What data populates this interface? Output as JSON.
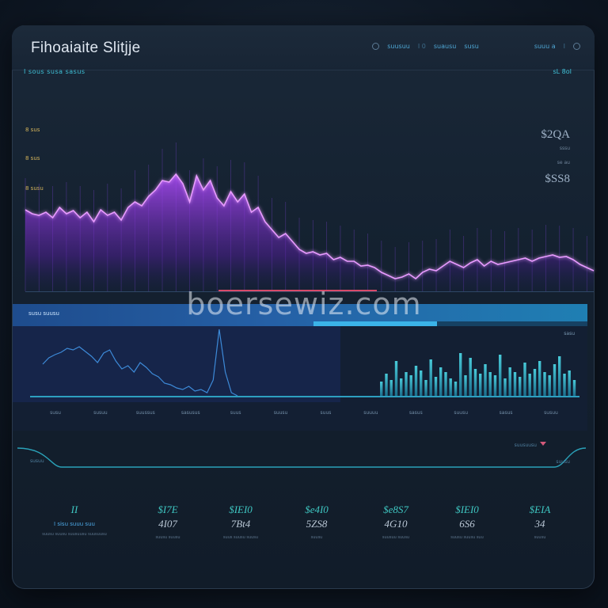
{
  "window": {
    "title": "Fihoaiaite Slitjje"
  },
  "top_nav": {
    "items": [
      "suusuu",
      "I 0",
      "suausu",
      "susu",
      "suuu a",
      "I"
    ],
    "colors": {
      "accent": "#4fa8d6"
    }
  },
  "main_chart": {
    "header_left": "I sous susa sasus",
    "header_right": "sL 8oI",
    "y_ticks": [
      "8 sus",
      "8 sus",
      "8 susu"
    ],
    "value_1": "$2QA",
    "caption_1": "sssu",
    "caption_2": "se au",
    "value_2": "$SS8",
    "progress": 0.3,
    "colors": {
      "line": "#d07bff",
      "fill": "#8a2be2",
      "grid": "#7a4fc4"
    }
  },
  "chart_data": [
    {
      "type": "area",
      "series": [
        {
          "values": [
            265,
            270,
            272,
            268,
            275,
            262,
            270,
            266,
            275,
            268,
            280,
            265,
            272,
            268,
            278,
            262,
            255,
            260,
            248,
            240,
            228,
            230,
            220,
            232,
            255,
            222,
            240,
            228,
            250,
            260,
            242,
            255,
            245,
            268,
            262,
            280,
            290,
            300,
            295,
            305,
            315,
            320,
            318,
            322,
            320,
            328,
            325,
            330,
            330,
            336,
            335,
            338,
            344,
            348,
            352,
            350,
            346,
            352,
            344,
            340,
            342,
            336,
            330,
            334,
            338,
            332,
            328,
            336,
            330,
            334,
            332,
            330,
            328,
            326,
            330,
            326,
            324,
            322,
            325,
            324,
            328,
            334,
            338,
            342
          ]
        }
      ]
    },
    {
      "type": "line",
      "series": [
        {
          "values": [
            460,
            452,
            448,
            445,
            440,
            442,
            438,
            444,
            450,
            458,
            446,
            442,
            456,
            466,
            462,
            470,
            458,
            464,
            472,
            476,
            484,
            486,
            490,
            492,
            488,
            494,
            492,
            496,
            480,
            416,
            470,
            496,
            500
          ]
        }
      ]
    },
    {
      "type": "bar",
      "values": [
        18,
        28,
        20,
        44,
        22,
        30,
        26,
        38,
        32,
        20,
        46,
        24,
        36,
        30,
        22,
        18,
        54,
        26,
        48,
        34,
        28,
        40,
        30,
        26,
        52,
        22,
        36,
        30,
        24,
        42,
        28,
        34,
        44,
        30,
        26,
        40,
        50,
        28,
        32,
        20
      ]
    }
  ],
  "bar_panel": {
    "label": "susu suusu",
    "sub_caption": "sasu",
    "progress": 0.45,
    "x_labels": [
      "susu",
      "susuu",
      "suussus",
      "sasusus",
      "suus",
      "suusu",
      "suus",
      "suuuu",
      "sasus",
      "suusu",
      "sasus",
      "susuu"
    ]
  },
  "range": {
    "left_label": "susuu",
    "right_label": "suusu",
    "select_label": "suusuusu"
  },
  "stats": [
    {
      "top": "II",
      "mid": "I sisu suuu suu",
      "cap": "suusu suusu suusuusu suusuusu"
    },
    {
      "top": "$I7E",
      "mid": "4I07",
      "cap": "suusu suusu"
    },
    {
      "top": "$IEI0",
      "mid": "7Bt4",
      "cap": "suus suusu suusu"
    },
    {
      "top": "$e4I0",
      "mid": "5ZS8",
      "cap": "suusu"
    },
    {
      "top": "$e8S7",
      "mid": "4G10",
      "cap": "suusuu suusu"
    },
    {
      "top": "$IEI0",
      "mid": "6S6",
      "cap": "suusu suusu suu"
    },
    {
      "top": "$EIA",
      "mid": "34",
      "cap": "suusu"
    }
  ],
  "watermark": "boersewiz.com"
}
